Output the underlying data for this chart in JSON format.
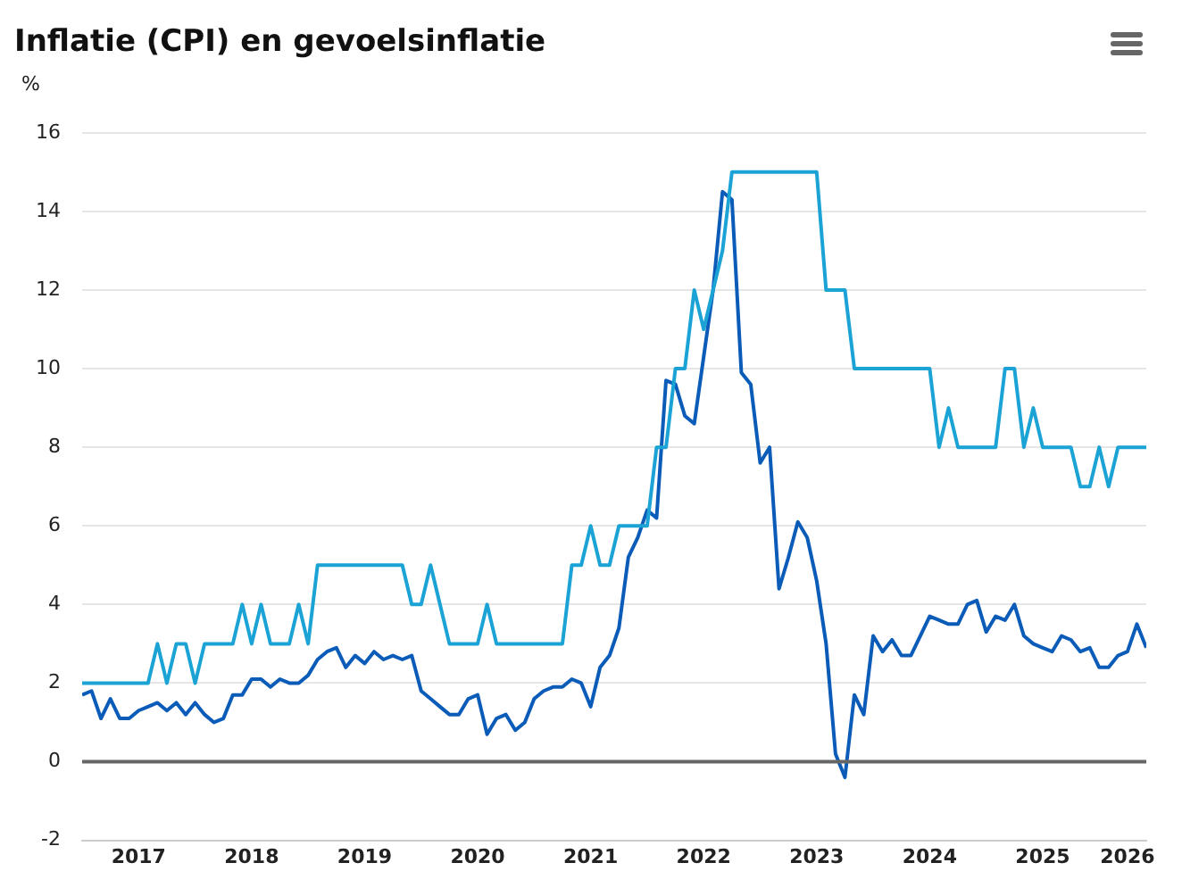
{
  "chart_data": {
    "type": "line",
    "title": "Inflatie (CPI) en gevoelsinflatie",
    "ylabel": "%",
    "x": [
      "2017-01",
      "2017-02",
      "2017-03",
      "2017-04",
      "2017-05",
      "2017-06",
      "2017-07",
      "2017-08",
      "2017-09",
      "2017-10",
      "2017-11",
      "2017-12",
      "2018-01",
      "2018-02",
      "2018-03",
      "2018-04",
      "2018-05",
      "2018-06",
      "2018-07",
      "2018-08",
      "2018-09",
      "2018-10",
      "2018-11",
      "2018-12",
      "2019-01",
      "2019-02",
      "2019-03",
      "2019-04",
      "2019-05",
      "2019-06",
      "2019-07",
      "2019-08",
      "2019-09",
      "2019-10",
      "2019-11",
      "2019-12",
      "2020-01",
      "2020-02",
      "2020-03",
      "2020-04",
      "2020-05",
      "2020-06",
      "2020-07",
      "2020-08",
      "2020-09",
      "2020-10",
      "2020-11",
      "2020-12",
      "2021-01",
      "2021-02",
      "2021-03",
      "2021-04",
      "2021-05",
      "2021-06",
      "2021-07",
      "2021-08",
      "2021-09",
      "2021-10",
      "2021-11",
      "2021-12",
      "2022-01",
      "2022-02",
      "2022-03",
      "2022-04",
      "2022-05",
      "2022-06",
      "2022-07",
      "2022-08",
      "2022-09",
      "2022-10",
      "2022-11",
      "2022-12",
      "2023-01",
      "2023-02",
      "2023-03",
      "2023-04",
      "2023-05",
      "2023-06",
      "2023-07",
      "2023-08",
      "2023-09",
      "2023-10",
      "2023-11",
      "2023-12",
      "2024-01",
      "2024-02",
      "2024-03",
      "2024-04",
      "2024-05",
      "2024-06",
      "2024-07",
      "2024-08",
      "2024-09",
      "2024-10",
      "2024-11",
      "2024-12",
      "2025-01",
      "2025-02",
      "2025-03",
      "2025-04",
      "2025-05",
      "2025-06",
      "2025-07",
      "2025-08",
      "2025-09",
      "2025-10",
      "2025-11",
      "2025-12",
      "2026-01",
      "2026-02",
      "2026-03",
      "2026-04",
      "2026-05",
      "2026-06"
    ],
    "series": [
      {
        "color": "#1ba3d6",
        "values": [
          2,
          2,
          2,
          2,
          2,
          2,
          2,
          2,
          3,
          2,
          3,
          3,
          2,
          3,
          3,
          3,
          3,
          4,
          3,
          4,
          3,
          3,
          3,
          4,
          3,
          5,
          5,
          5,
          5,
          5,
          5,
          5,
          5,
          5,
          5,
          4,
          4,
          5,
          4,
          3,
          3,
          3,
          3,
          4,
          3,
          3,
          3,
          3,
          3,
          3,
          3,
          3,
          5,
          5,
          6,
          5,
          5,
          6,
          6,
          6,
          6,
          8,
          8,
          10,
          10,
          12,
          11,
          12,
          13,
          15,
          15,
          15,
          15,
          15,
          15,
          15,
          15,
          15,
          15,
          12,
          12,
          12,
          10,
          10,
          10,
          10,
          10,
          10,
          10,
          10,
          10,
          8,
          9,
          8,
          8,
          8,
          8,
          8,
          10,
          10,
          8,
          9,
          8,
          8,
          8,
          8,
          7,
          7,
          8,
          7,
          8,
          8,
          8,
          8
        ]
      },
      {
        "color": "#0b5cb8",
        "values": [
          1.7,
          1.8,
          1.1,
          1.6,
          1.1,
          1.1,
          1.3,
          1.4,
          1.5,
          1.3,
          1.5,
          1.2,
          1.5,
          1.2,
          1.0,
          1.1,
          1.7,
          1.7,
          2.1,
          2.1,
          1.9,
          2.1,
          2.0,
          2.0,
          2.2,
          2.6,
          2.8,
          2.9,
          2.4,
          2.7,
          2.5,
          2.8,
          2.6,
          2.7,
          2.6,
          2.7,
          1.8,
          1.6,
          1.4,
          1.2,
          1.2,
          1.6,
          1.7,
          0.7,
          1.1,
          1.2,
          0.8,
          1.0,
          1.6,
          1.8,
          1.9,
          1.9,
          2.1,
          2.0,
          1.4,
          2.4,
          2.7,
          3.4,
          5.2,
          5.7,
          6.4,
          6.2,
          9.7,
          9.6,
          8.8,
          8.6,
          10.3,
          12.0,
          14.5,
          14.3,
          9.9,
          9.6,
          7.6,
          8.0,
          4.4,
          5.2,
          6.1,
          5.7,
          4.6,
          3.0,
          0.2,
          -0.4,
          1.7,
          1.2,
          3.2,
          2.8,
          3.1,
          2.7,
          2.7,
          3.2,
          3.7,
          3.6,
          3.5,
          3.5,
          4.0,
          4.1,
          3.3,
          3.7,
          3.6,
          4.0,
          3.2,
          3.0,
          2.9,
          2.8,
          3.2,
          3.1,
          2.8,
          2.9,
          2.4,
          2.4,
          2.7,
          2.8,
          3.5,
          2.9
        ]
      }
    ],
    "xlim": [
      "2017-01",
      "2026-06"
    ],
    "xticks": [
      {
        "value": "2017-07",
        "label": "2017"
      },
      {
        "value": "2018-07",
        "label": "2018"
      },
      {
        "value": "2019-07",
        "label": "2019"
      },
      {
        "value": "2020-07",
        "label": "2020"
      },
      {
        "value": "2021-07",
        "label": "2021"
      },
      {
        "value": "2022-07",
        "label": "2022"
      },
      {
        "value": "2023-07",
        "label": "2023"
      },
      {
        "value": "2024-07",
        "label": "2024"
      },
      {
        "value": "2025-07",
        "label": "2025"
      },
      {
        "value": "2026-04",
        "label": "2026"
      }
    ],
    "ylim": [
      -2,
      16
    ],
    "yticks": [
      -2,
      0,
      2,
      4,
      6,
      8,
      10,
      12,
      14,
      16
    ],
    "ref_lines": [
      {
        "axis": "y",
        "value": 0,
        "color": "#666666"
      }
    ],
    "grid": "y",
    "legend": false,
    "marker": "none",
    "line_style": "solid"
  }
}
